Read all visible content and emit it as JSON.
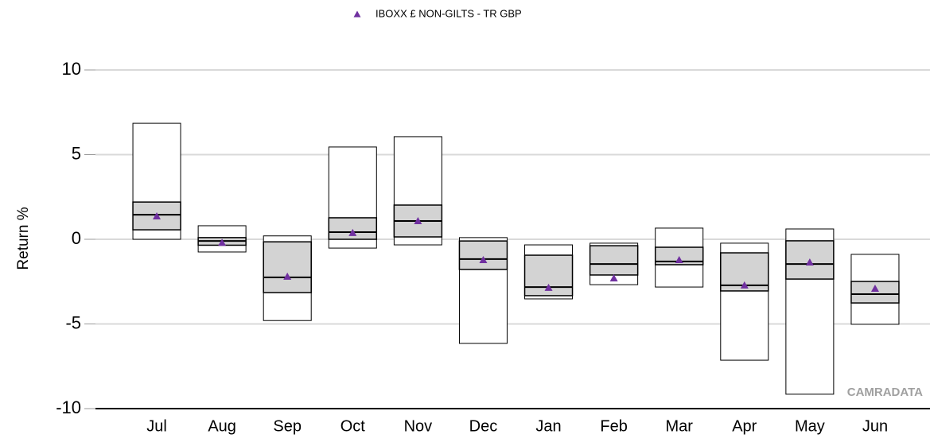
{
  "chart_data": {
    "type": "box",
    "y_label": "Return %",
    "watermark": "CAMRADATA",
    "categories": [
      "Jul",
      "Aug",
      "Sep",
      "Oct",
      "Nov",
      "Dec",
      "Jan",
      "Feb",
      "Mar",
      "Apr",
      "May",
      "Jun"
    ],
    "max": [
      6.85,
      0.8,
      0.2,
      5.45,
      6.06,
      0.1,
      -0.33,
      -0.23,
      0.66,
      -0.23,
      0.61,
      -0.89
    ],
    "q3": [
      2.2,
      0.1,
      -0.15,
      1.27,
      2.02,
      -0.1,
      -0.94,
      -0.38,
      -0.47,
      -0.8,
      -0.09,
      -2.49
    ],
    "median": [
      1.45,
      -0.1,
      -2.25,
      0.42,
      1.08,
      -1.17,
      -2.82,
      -1.46,
      -1.31,
      -2.72,
      -1.46,
      -3.24
    ],
    "q1": [
      0.56,
      -0.35,
      -3.15,
      0,
      0.14,
      -1.78,
      -3.33,
      -2.11,
      -1.5,
      -3.05,
      -2.35,
      -3.76
    ],
    "min": [
      0,
      -0.75,
      -4.8,
      -0.52,
      -0.33,
      -6.15,
      -3.52,
      -2.68,
      -2.82,
      -7.14,
      -9.15,
      -5.02
    ],
    "box_color": "#d3d3d3",
    "series": [
      {
        "name": "IBOXX £ NON-GILTS - TR GBP",
        "color": "#7030a0",
        "values": [
          1.36,
          -0.2,
          -2.2,
          0.38,
          1.08,
          -1.22,
          -2.86,
          -2.3,
          -1.22,
          -2.72,
          -1.36,
          -2.91
        ]
      }
    ],
    "ylim": [
      -10,
      10
    ],
    "yticks": [
      -10,
      -5,
      0,
      5,
      10
    ],
    "grid": true
  }
}
